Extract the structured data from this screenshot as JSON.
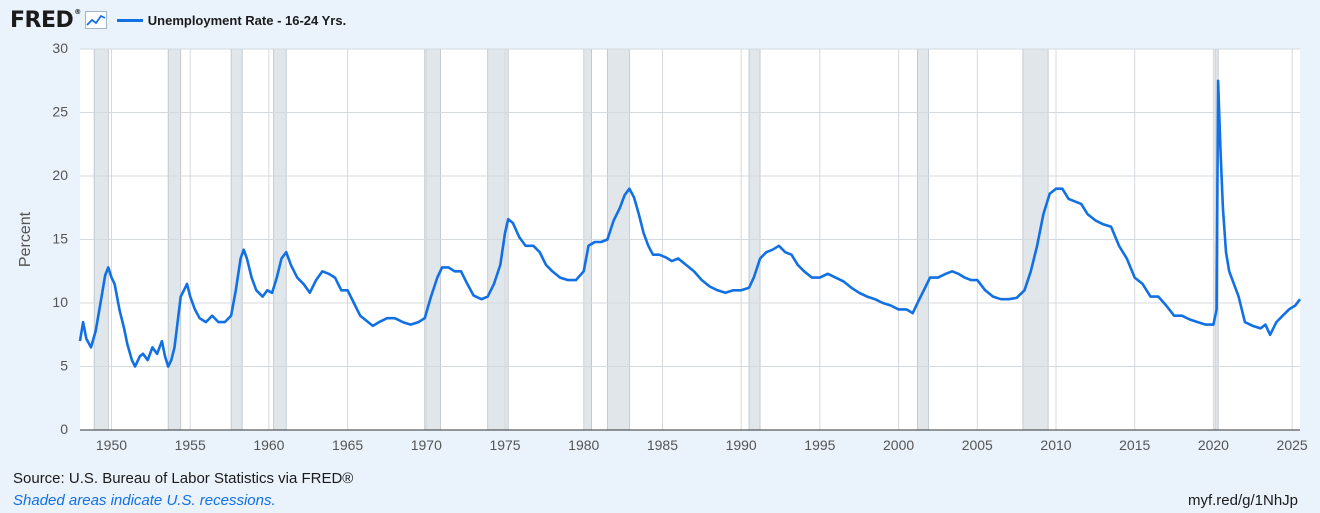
{
  "header": {
    "logo_text": "FRED",
    "logo_mark": "®",
    "logo_icon": "line-chart-icon",
    "legend_label": "Unemployment Rate - 16-24 Yrs."
  },
  "footer": {
    "source": "Source: U.S. Bureau of Labor Statistics via FRED®",
    "note": "Shaded areas indicate U.S. recessions.",
    "link": "myf.red/g/1NhJp"
  },
  "colors": {
    "line": "#1170e3",
    "recession": "#e1e6ea",
    "background": "#eaf2fb",
    "plot_background": "#ffffff"
  },
  "chart_data": {
    "type": "line",
    "title": "",
    "xlabel": "",
    "ylabel": "Percent",
    "xlim": [
      1948.0,
      2025.5
    ],
    "ylim": [
      0,
      30
    ],
    "x_ticks": [
      1950,
      1955,
      1960,
      1965,
      1970,
      1975,
      1980,
      1985,
      1990,
      1995,
      2000,
      2005,
      2010,
      2015,
      2020,
      2025
    ],
    "y_ticks": [
      0,
      5,
      10,
      15,
      20,
      25,
      30
    ],
    "grid": true,
    "recessions": [
      [
        1948.9,
        1949.8
      ],
      [
        1953.6,
        1954.4
      ],
      [
        1957.6,
        1958.3
      ],
      [
        1960.3,
        1961.1
      ],
      [
        1969.9,
        1970.9
      ],
      [
        1973.9,
        1975.2
      ],
      [
        1980.0,
        1980.5
      ],
      [
        1981.5,
        1982.9
      ],
      [
        1990.5,
        1991.2
      ],
      [
        2001.2,
        2001.9
      ],
      [
        2007.9,
        2009.5
      ],
      [
        2020.1,
        2020.3
      ]
    ],
    "series": [
      {
        "name": "Unemployment Rate - 16-24 Yrs.",
        "points": [
          [
            1948.0,
            7.0
          ],
          [
            1948.2,
            8.5
          ],
          [
            1948.4,
            7.2
          ],
          [
            1948.7,
            6.5
          ],
          [
            1949.0,
            7.8
          ],
          [
            1949.3,
            10.0
          ],
          [
            1949.6,
            12.2
          ],
          [
            1949.8,
            12.8
          ],
          [
            1950.0,
            12.0
          ],
          [
            1950.2,
            11.5
          ],
          [
            1950.5,
            9.5
          ],
          [
            1950.8,
            8.0
          ],
          [
            1951.0,
            6.8
          ],
          [
            1951.3,
            5.5
          ],
          [
            1951.5,
            5.0
          ],
          [
            1951.8,
            5.8
          ],
          [
            1952.0,
            6.0
          ],
          [
            1952.3,
            5.5
          ],
          [
            1952.6,
            6.5
          ],
          [
            1952.9,
            6.0
          ],
          [
            1953.2,
            7.0
          ],
          [
            1953.4,
            5.8
          ],
          [
            1953.6,
            5.0
          ],
          [
            1953.8,
            5.5
          ],
          [
            1954.0,
            6.5
          ],
          [
            1954.2,
            8.5
          ],
          [
            1954.4,
            10.5
          ],
          [
            1954.6,
            11.0
          ],
          [
            1954.8,
            11.5
          ],
          [
            1955.0,
            10.5
          ],
          [
            1955.3,
            9.5
          ],
          [
            1955.6,
            8.8
          ],
          [
            1956.0,
            8.5
          ],
          [
            1956.4,
            9.0
          ],
          [
            1956.8,
            8.5
          ],
          [
            1957.2,
            8.5
          ],
          [
            1957.6,
            9.0
          ],
          [
            1957.9,
            11.0
          ],
          [
            1958.2,
            13.5
          ],
          [
            1958.4,
            14.2
          ],
          [
            1958.6,
            13.5
          ],
          [
            1958.9,
            12.0
          ],
          [
            1959.2,
            11.0
          ],
          [
            1959.6,
            10.5
          ],
          [
            1959.9,
            11.0
          ],
          [
            1960.2,
            10.8
          ],
          [
            1960.5,
            12.0
          ],
          [
            1960.8,
            13.5
          ],
          [
            1961.1,
            14.0
          ],
          [
            1961.4,
            13.0
          ],
          [
            1961.8,
            12.0
          ],
          [
            1962.2,
            11.5
          ],
          [
            1962.6,
            10.8
          ],
          [
            1963.0,
            11.8
          ],
          [
            1963.4,
            12.5
          ],
          [
            1963.8,
            12.3
          ],
          [
            1964.2,
            12.0
          ],
          [
            1964.6,
            11.0
          ],
          [
            1965.0,
            11.0
          ],
          [
            1965.4,
            10.0
          ],
          [
            1965.8,
            9.0
          ],
          [
            1966.2,
            8.6
          ],
          [
            1966.6,
            8.2
          ],
          [
            1967.0,
            8.5
          ],
          [
            1967.5,
            8.8
          ],
          [
            1968.0,
            8.8
          ],
          [
            1968.5,
            8.5
          ],
          [
            1969.0,
            8.3
          ],
          [
            1969.5,
            8.5
          ],
          [
            1969.9,
            8.8
          ],
          [
            1970.3,
            10.5
          ],
          [
            1970.7,
            12.0
          ],
          [
            1971.0,
            12.8
          ],
          [
            1971.4,
            12.8
          ],
          [
            1971.8,
            12.5
          ],
          [
            1972.2,
            12.5
          ],
          [
            1972.6,
            11.5
          ],
          [
            1973.0,
            10.6
          ],
          [
            1973.5,
            10.3
          ],
          [
            1973.9,
            10.5
          ],
          [
            1974.3,
            11.5
          ],
          [
            1974.7,
            13.0
          ],
          [
            1975.0,
            15.5
          ],
          [
            1975.2,
            16.6
          ],
          [
            1975.5,
            16.3
          ],
          [
            1975.9,
            15.2
          ],
          [
            1976.3,
            14.5
          ],
          [
            1976.8,
            14.5
          ],
          [
            1977.2,
            14.0
          ],
          [
            1977.6,
            13.0
          ],
          [
            1978.0,
            12.5
          ],
          [
            1978.5,
            12.0
          ],
          [
            1979.0,
            11.8
          ],
          [
            1979.5,
            11.8
          ],
          [
            1980.0,
            12.5
          ],
          [
            1980.3,
            14.5
          ],
          [
            1980.7,
            14.8
          ],
          [
            1981.1,
            14.8
          ],
          [
            1981.5,
            15.0
          ],
          [
            1981.9,
            16.5
          ],
          [
            1982.3,
            17.5
          ],
          [
            1982.6,
            18.5
          ],
          [
            1982.9,
            19.0
          ],
          [
            1983.2,
            18.3
          ],
          [
            1983.5,
            17.0
          ],
          [
            1983.8,
            15.5
          ],
          [
            1984.1,
            14.5
          ],
          [
            1984.4,
            13.8
          ],
          [
            1984.8,
            13.8
          ],
          [
            1985.2,
            13.6
          ],
          [
            1985.6,
            13.3
          ],
          [
            1986.0,
            13.5
          ],
          [
            1986.5,
            13.0
          ],
          [
            1987.0,
            12.5
          ],
          [
            1987.5,
            11.8
          ],
          [
            1988.0,
            11.3
          ],
          [
            1988.5,
            11.0
          ],
          [
            1989.0,
            10.8
          ],
          [
            1989.5,
            11.0
          ],
          [
            1990.0,
            11.0
          ],
          [
            1990.5,
            11.2
          ],
          [
            1990.8,
            12.0
          ],
          [
            1991.2,
            13.5
          ],
          [
            1991.6,
            14.0
          ],
          [
            1992.0,
            14.2
          ],
          [
            1992.4,
            14.5
          ],
          [
            1992.8,
            14.0
          ],
          [
            1993.2,
            13.8
          ],
          [
            1993.6,
            13.0
          ],
          [
            1994.0,
            12.5
          ],
          [
            1994.5,
            12.0
          ],
          [
            1995.0,
            12.0
          ],
          [
            1995.5,
            12.3
          ],
          [
            1996.0,
            12.0
          ],
          [
            1996.5,
            11.7
          ],
          [
            1997.0,
            11.2
          ],
          [
            1997.5,
            10.8
          ],
          [
            1998.0,
            10.5
          ],
          [
            1998.5,
            10.3
          ],
          [
            1999.0,
            10.0
          ],
          [
            1999.5,
            9.8
          ],
          [
            2000.0,
            9.5
          ],
          [
            2000.5,
            9.5
          ],
          [
            2000.9,
            9.2
          ],
          [
            2001.2,
            10.0
          ],
          [
            2001.6,
            11.0
          ],
          [
            2002.0,
            12.0
          ],
          [
            2002.5,
            12.0
          ],
          [
            2003.0,
            12.3
          ],
          [
            2003.4,
            12.5
          ],
          [
            2003.8,
            12.3
          ],
          [
            2004.2,
            12.0
          ],
          [
            2004.6,
            11.8
          ],
          [
            2005.0,
            11.8
          ],
          [
            2005.5,
            11.0
          ],
          [
            2006.0,
            10.5
          ],
          [
            2006.5,
            10.3
          ],
          [
            2007.0,
            10.3
          ],
          [
            2007.5,
            10.4
          ],
          [
            2008.0,
            11.0
          ],
          [
            2008.4,
            12.5
          ],
          [
            2008.8,
            14.5
          ],
          [
            2009.2,
            17.0
          ],
          [
            2009.6,
            18.6
          ],
          [
            2010.0,
            19.0
          ],
          [
            2010.4,
            19.0
          ],
          [
            2010.8,
            18.2
          ],
          [
            2011.2,
            18.0
          ],
          [
            2011.6,
            17.8
          ],
          [
            2012.0,
            17.0
          ],
          [
            2012.5,
            16.5
          ],
          [
            2013.0,
            16.2
          ],
          [
            2013.5,
            16.0
          ],
          [
            2014.0,
            14.5
          ],
          [
            2014.5,
            13.5
          ],
          [
            2015.0,
            12.0
          ],
          [
            2015.5,
            11.5
          ],
          [
            2016.0,
            10.5
          ],
          [
            2016.5,
            10.5
          ],
          [
            2017.0,
            9.8
          ],
          [
            2017.5,
            9.0
          ],
          [
            2018.0,
            9.0
          ],
          [
            2018.5,
            8.7
          ],
          [
            2019.0,
            8.5
          ],
          [
            2019.5,
            8.3
          ],
          [
            2020.0,
            8.3
          ],
          [
            2020.2,
            9.5
          ],
          [
            2020.3,
            27.5
          ],
          [
            2020.45,
            22.0
          ],
          [
            2020.6,
            17.5
          ],
          [
            2020.8,
            14.0
          ],
          [
            2021.0,
            12.5
          ],
          [
            2021.3,
            11.5
          ],
          [
            2021.6,
            10.5
          ],
          [
            2022.0,
            8.5
          ],
          [
            2022.5,
            8.2
          ],
          [
            2023.0,
            8.0
          ],
          [
            2023.3,
            8.3
          ],
          [
            2023.6,
            7.5
          ],
          [
            2024.0,
            8.5
          ],
          [
            2024.4,
            9.0
          ],
          [
            2024.8,
            9.5
          ],
          [
            2025.2,
            9.8
          ],
          [
            2025.5,
            10.3
          ]
        ]
      }
    ]
  }
}
